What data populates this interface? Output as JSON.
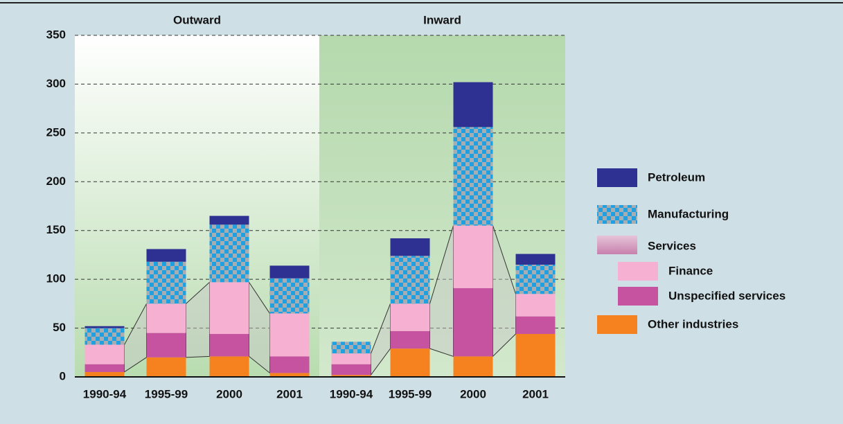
{
  "chart_data": {
    "type": "bar",
    "stacked": true,
    "groups": [
      {
        "title": "Outward",
        "size": 4
      },
      {
        "title": "Inward",
        "size": 4
      }
    ],
    "categories": [
      "1990-94",
      "1995-99",
      "2000",
      "2001",
      "1990-94",
      "1995-99",
      "2000",
      "2001"
    ],
    "series": [
      {
        "name": "Other industries",
        "color": "#f5821f",
        "values": [
          5,
          20,
          21,
          4,
          2,
          29,
          21,
          44
        ]
      },
      {
        "name": "Unspecified services",
        "color": "#c653a0",
        "values": [
          8,
          25,
          23,
          17,
          11,
          18,
          70,
          18
        ]
      },
      {
        "name": "Finance",
        "color": "#f6b0d2",
        "values": [
          20,
          30,
          53,
          44,
          11,
          28,
          64,
          23
        ]
      },
      {
        "name": "Manufacturing",
        "color": "#1fa0e0",
        "pattern": "checker",
        "values": [
          17,
          43,
          59,
          36,
          12,
          49,
          101,
          30
        ]
      },
      {
        "name": "Petroleum",
        "color": "#2e3192",
        "values": [
          2,
          13,
          9,
          13,
          0,
          18,
          46,
          11
        ]
      }
    ],
    "legend_heading": "Services",
    "ylim": [
      0,
      350
    ],
    "yticks": [
      0,
      50,
      100,
      150,
      200,
      250,
      300,
      350
    ],
    "grid": true
  }
}
